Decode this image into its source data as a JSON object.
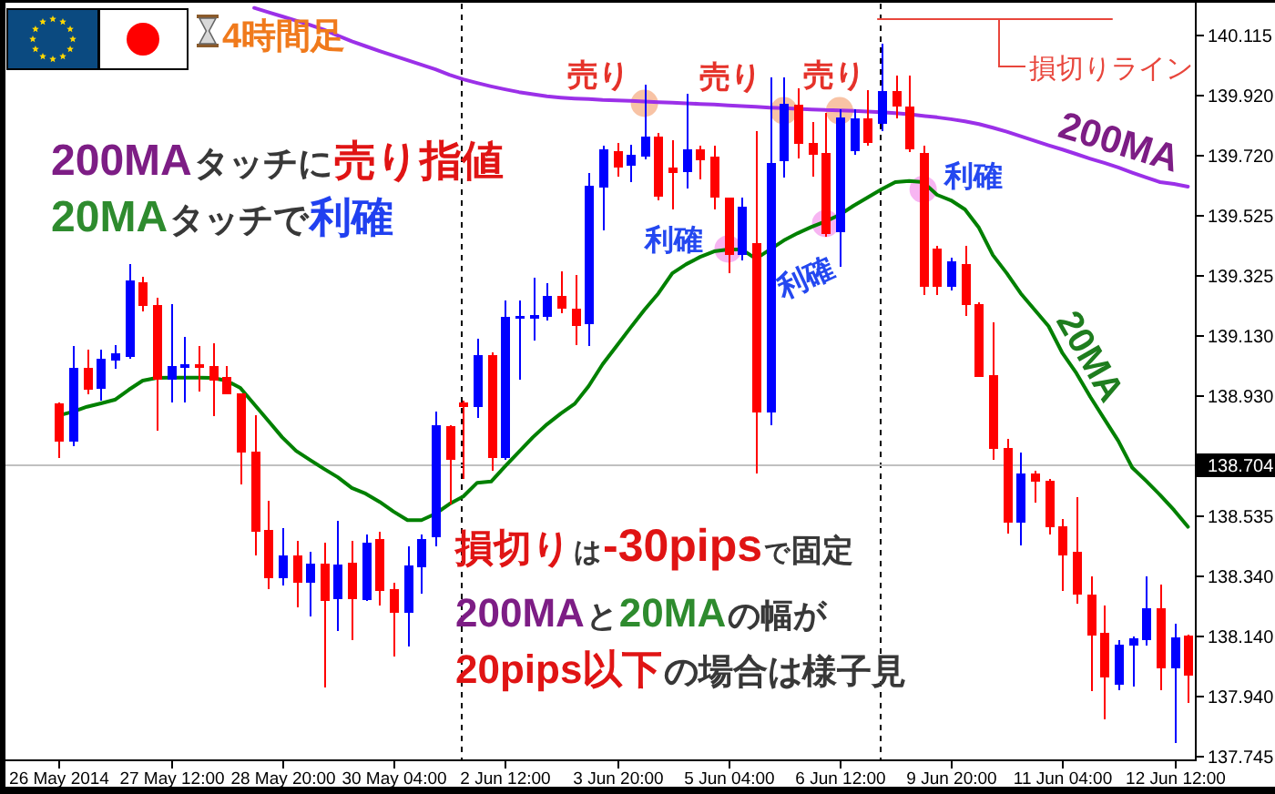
{
  "chart_data": {
    "type": "candlestick",
    "title": "4時間足",
    "categories": [
      "26 May 2014",
      null,
      null,
      null,
      null,
      null,
      null,
      null,
      "27 May 12:00",
      null,
      null,
      null,
      null,
      null,
      null,
      null,
      "28 May 20:00",
      null,
      null,
      null,
      null,
      null,
      null,
      null,
      "30 May 04:00",
      null,
      null,
      null,
      null,
      null,
      null,
      null,
      "2 Jun 12:00",
      null,
      null,
      null,
      null,
      null,
      null,
      null,
      "3 Jun 20:00",
      null,
      null,
      null,
      null,
      null,
      null,
      null,
      "5 Jun 04:00",
      null,
      null,
      null,
      null,
      null,
      null,
      null,
      "6 Jun 12:00",
      null,
      null,
      null,
      null,
      null,
      null,
      null,
      "9 Jun 20:00",
      null,
      null,
      null,
      null,
      null,
      null,
      null,
      "11 Jun 04:00",
      null,
      null,
      null,
      null,
      null,
      null,
      null,
      "12 Jun 12:00",
      null
    ],
    "ohlc": [
      [
        138.903,
        138.906,
        138.723,
        138.777
      ],
      [
        138.777,
        139.093,
        138.763,
        139.021
      ],
      [
        139.021,
        139.081,
        138.933,
        138.949
      ],
      [
        138.951,
        139.081,
        138.913,
        139.051
      ],
      [
        139.046,
        139.097,
        139.017,
        139.069
      ],
      [
        139.057,
        139.362,
        139.052,
        139.308
      ],
      [
        139.302,
        139.32,
        139.206,
        139.226
      ],
      [
        139.229,
        139.253,
        138.813,
        138.983
      ],
      [
        138.983,
        139.232,
        138.907,
        139.027
      ],
      [
        139.021,
        139.122,
        138.907,
        139.033
      ],
      [
        139.033,
        139.093,
        138.943,
        139.021
      ],
      [
        139.027,
        139.103,
        138.863,
        138.979
      ],
      [
        138.991,
        139.027,
        138.933,
        138.933
      ],
      [
        138.937,
        138.937,
        138.637,
        138.741
      ],
      [
        138.745,
        138.865,
        138.404,
        138.483
      ],
      [
        138.488,
        138.583,
        138.294,
        138.33
      ],
      [
        138.33,
        138.494,
        138.304,
        138.404
      ],
      [
        138.404,
        138.453,
        138.234,
        138.314
      ],
      [
        138.314,
        138.417,
        138.204,
        138.378
      ],
      [
        138.378,
        138.446,
        137.971,
        138.254
      ],
      [
        138.26,
        138.519,
        138.154,
        138.374
      ],
      [
        138.38,
        138.453,
        138.124,
        138.26
      ],
      [
        138.258,
        138.474,
        138.254,
        138.447
      ],
      [
        138.459,
        138.483,
        138.238,
        138.288
      ],
      [
        138.294,
        138.314,
        138.07,
        138.214
      ],
      [
        138.214,
        138.434,
        138.104,
        138.37
      ],
      [
        138.364,
        138.474,
        138.278,
        138.459
      ],
      [
        138.464,
        138.877,
        138.434,
        138.833
      ],
      [
        138.829,
        138.833,
        138.573,
        138.717
      ],
      [
        138.907,
        138.913,
        138.657,
        138.893
      ],
      [
        138.893,
        139.117,
        138.857,
        139.063
      ],
      [
        139.063,
        139.073,
        138.683,
        138.723
      ],
      [
        138.723,
        139.242,
        138.717,
        139.188
      ],
      [
        139.182,
        139.242,
        138.983,
        139.193
      ],
      [
        139.184,
        139.318,
        139.112,
        139.196
      ],
      [
        139.188,
        139.298,
        139.178,
        139.258
      ],
      [
        139.258,
        139.338,
        139.202,
        139.217
      ],
      [
        139.217,
        139.326,
        139.097,
        139.158
      ],
      [
        139.166,
        139.662,
        139.093,
        139.621
      ],
      [
        139.615,
        139.751,
        139.472,
        139.741
      ],
      [
        139.735,
        139.762,
        139.651,
        139.681
      ],
      [
        139.687,
        139.756,
        139.632,
        139.721
      ],
      [
        139.715,
        139.951,
        139.708,
        139.781
      ],
      [
        139.781,
        139.793,
        139.572,
        139.583
      ],
      [
        139.681,
        139.771,
        139.542,
        139.662
      ],
      [
        139.666,
        139.921,
        139.612,
        139.741
      ],
      [
        139.741,
        139.751,
        139.642,
        139.705
      ],
      [
        139.715,
        139.751,
        139.542,
        139.582
      ],
      [
        139.582,
        139.582,
        139.332,
        139.392
      ],
      [
        139.392,
        139.582,
        139.374,
        139.552
      ],
      [
        139.432,
        139.801,
        138.673,
        138.873
      ],
      [
        138.873,
        139.977,
        138.833,
        139.696
      ],
      [
        139.702,
        139.977,
        139.648,
        139.891
      ],
      [
        139.887,
        139.941,
        139.711,
        139.757
      ],
      [
        139.762,
        139.831,
        139.651,
        139.721
      ],
      [
        139.727,
        139.861,
        139.452,
        139.462
      ],
      [
        139.468,
        139.871,
        139.352,
        139.845
      ],
      [
        139.735,
        139.871,
        139.721,
        139.841
      ],
      [
        139.841,
        139.935,
        139.751,
        139.762
      ],
      [
        139.825,
        140.087,
        139.801,
        139.931
      ],
      [
        139.931,
        139.981,
        139.841,
        139.881
      ],
      [
        139.881,
        139.981,
        139.732,
        139.741
      ],
      [
        139.727,
        139.751,
        139.262,
        139.288
      ],
      [
        139.412,
        139.422,
        139.262,
        139.288
      ],
      [
        139.288,
        139.382,
        139.276,
        139.372
      ],
      [
        139.362,
        139.422,
        139.193,
        139.228
      ],
      [
        139.232,
        139.236,
        138.992,
        138.992
      ],
      [
        138.997,
        139.172,
        138.717,
        138.753
      ],
      [
        138.757,
        138.787,
        138.477,
        138.513
      ],
      [
        138.513,
        138.743,
        138.438,
        138.673
      ],
      [
        138.673,
        138.683,
        138.577,
        138.647
      ],
      [
        138.649,
        138.657,
        138.474,
        138.498
      ],
      [
        138.5,
        138.524,
        138.288,
        138.404
      ],
      [
        138.417,
        138.597,
        138.244,
        138.274
      ],
      [
        138.274,
        138.334,
        137.959,
        138.14
      ],
      [
        138.148,
        138.24,
        137.865,
        138.004
      ],
      [
        137.98,
        138.124,
        137.96,
        138.11
      ],
      [
        138.108,
        138.138,
        137.974,
        138.13
      ],
      [
        138.124,
        138.334,
        138.108,
        138.23
      ],
      [
        138.23,
        138.308,
        137.96,
        138.034
      ],
      [
        138.034,
        138.178,
        137.788,
        138.134
      ],
      [
        138.14,
        138.144,
        137.918,
        138.01
      ]
    ],
    "colors": [
      "#ff0000",
      "#0000ff",
      "#ff0000",
      "#0000ff",
      "#0000ff",
      "#0000ff",
      "#ff0000",
      "#ff0000",
      "#0000ff",
      "#0000ff",
      "#ff0000",
      "#ff0000",
      "#ff0000",
      "#ff0000",
      "#ff0000",
      "#ff0000",
      "#0000ff",
      "#ff0000",
      "#0000ff",
      "#ff0000",
      "#0000ff",
      "#ff0000",
      "#0000ff",
      "#ff0000",
      "#ff0000",
      "#0000ff",
      "#0000ff",
      "#0000ff",
      "#ff0000",
      "#ff0000",
      "#0000ff",
      "#ff0000",
      "#0000ff",
      "#0000ff",
      "#0000ff",
      "#0000ff",
      "#ff0000",
      "#ff0000",
      "#0000ff",
      "#0000ff",
      "#ff0000",
      "#0000ff",
      "#0000ff",
      "#ff0000",
      "#ff0000",
      "#0000ff",
      "#ff0000",
      "#ff0000",
      "#ff0000",
      "#0000ff",
      "#ff0000",
      "#0000ff",
      "#0000ff",
      "#ff0000",
      "#ff0000",
      "#ff0000",
      "#0000ff",
      "#0000ff",
      "#ff0000",
      "#0000ff",
      "#ff0000",
      "#ff0000",
      "#ff0000",
      "#ff0000",
      "#0000ff",
      "#ff0000",
      "#ff0000",
      "#ff0000",
      "#ff0000",
      "#0000ff",
      "#ff0000",
      "#ff0000",
      "#ff0000",
      "#ff0000",
      "#ff0000",
      "#ff0000",
      "#0000ff",
      "#0000ff",
      "#0000ff",
      "#ff0000",
      "#0000ff",
      "#ff0000"
    ],
    "series": [
      {
        "name": "200MA",
        "type": "line",
        "color": "#9b30e8",
        "values": [
          null,
          null,
          null,
          null,
          null,
          null,
          null,
          null,
          null,
          null,
          null,
          null,
          null,
          null,
          140.205,
          140.191,
          140.177,
          140.163,
          140.149,
          140.133,
          140.114,
          140.095,
          140.079,
          140.063,
          140.048,
          140.033,
          140.018,
          140.003,
          139.985,
          139.97,
          139.958,
          139.947,
          139.937,
          139.928,
          139.921,
          139.914,
          139.91,
          139.907,
          139.905,
          139.902,
          139.901,
          139.899,
          139.897,
          139.895,
          139.893,
          139.891,
          139.889,
          139.887,
          139.884,
          139.882,
          139.88,
          139.877,
          139.875,
          139.873,
          139.871,
          139.869,
          139.868,
          139.866,
          139.864,
          139.862,
          139.859,
          139.855,
          139.85,
          139.845,
          139.839,
          139.832,
          139.823,
          139.811,
          139.798,
          139.783,
          139.768,
          139.753,
          139.739,
          139.724,
          139.709,
          139.695,
          139.68,
          139.663,
          139.647,
          139.632,
          139.626,
          139.617
        ]
      },
      {
        "name": "20MA",
        "type": "line",
        "color": "#008000",
        "values": [
          138.865,
          138.877,
          138.893,
          138.904,
          138.916,
          138.949,
          138.979,
          138.988,
          138.989,
          138.989,
          138.989,
          138.988,
          138.979,
          138.955,
          138.901,
          138.847,
          138.793,
          138.748,
          138.718,
          138.689,
          138.661,
          138.626,
          138.607,
          138.58,
          138.548,
          138.52,
          138.52,
          138.541,
          138.573,
          138.598,
          138.643,
          138.647,
          138.697,
          138.745,
          138.793,
          138.835,
          138.871,
          138.903,
          138.961,
          139.033,
          139.093,
          139.153,
          139.212,
          139.266,
          139.332,
          139.362,
          139.386,
          139.404,
          139.41,
          139.41,
          139.38,
          139.41,
          139.44,
          139.464,
          139.485,
          139.503,
          139.524,
          139.554,
          139.581,
          139.608,
          139.632,
          139.636,
          139.632,
          139.59,
          139.572,
          139.542,
          139.482,
          139.392,
          139.332,
          139.266,
          139.212,
          139.158,
          139.069,
          139.003,
          138.925,
          138.853,
          138.781,
          138.693,
          138.649,
          138.603,
          138.553,
          138.498
        ]
      },
      {
        "type": "scatter",
        "marker": "circle",
        "color": "#f6b48e",
        "values": [
          null,
          null,
          null,
          null,
          null,
          null,
          null,
          null,
          null,
          null,
          null,
          null,
          null,
          null,
          null,
          null,
          null,
          null,
          null,
          null,
          null,
          null,
          null,
          null,
          null,
          null,
          null,
          null,
          null,
          null,
          null,
          null,
          null,
          null,
          null,
          null,
          null,
          null,
          null,
          null,
          null,
          null,
          139.891,
          null,
          null,
          null,
          null,
          null,
          null,
          null,
          null,
          null,
          139.867,
          null,
          null,
          null,
          139.867,
          null,
          null,
          null,
          null,
          null,
          null,
          null,
          null,
          null,
          null,
          null,
          null,
          null,
          null,
          null,
          null,
          null,
          null,
          null,
          null,
          null,
          null,
          null,
          null,
          null
        ]
      },
      {
        "type": "scatter",
        "marker": "circle",
        "color": "#f5a3ef",
        "values": [
          null,
          null,
          null,
          null,
          null,
          null,
          null,
          null,
          null,
          null,
          null,
          null,
          null,
          null,
          null,
          null,
          null,
          null,
          null,
          null,
          null,
          null,
          null,
          null,
          null,
          null,
          null,
          null,
          null,
          null,
          null,
          null,
          null,
          null,
          null,
          null,
          null,
          null,
          null,
          null,
          null,
          null,
          null,
          null,
          null,
          null,
          null,
          null,
          139.412,
          null,
          null,
          null,
          null,
          null,
          null,
          139.496,
          null,
          null,
          null,
          null,
          null,
          null,
          139.608,
          null,
          null,
          null,
          null,
          null,
          null,
          null,
          null,
          null,
          null,
          null,
          null,
          null,
          null,
          null,
          null,
          null,
          null,
          null
        ]
      }
    ],
    "ylim": [
      137.733,
      140.219
    ],
    "yticks": [
      140.115,
      {
        "value": 139.92,
        "label": "139.920"
      },
      {
        "value": 139.72,
        "label": "139.720"
      },
      139.525,
      139.325,
      {
        "value": 139.13,
        "label": "139.130"
      },
      {
        "value": 138.93,
        "label": "138.930"
      },
      138.535,
      {
        "value": 138.34,
        "label": "138.340"
      },
      {
        "value": 138.14,
        "label": "138.140"
      },
      {
        "value": 137.94,
        "label": "137.940"
      },
      137.745
    ],
    "ref_lines": [
      {
        "axis": "y",
        "value": 138.704,
        "label": "138.704",
        "color": "#c0c0c0"
      },
      {
        "axis": "y",
        "value": 140.171,
        "label": "損切りライン",
        "color": "#e8463c"
      }
    ],
    "annotations": [
      "売り",
      "売り",
      "売り",
      "利確",
      "利確",
      "利確",
      "200MA",
      "タッチに",
      "売り指値",
      "20MA",
      "タッチで",
      "利確",
      "損切り",
      "は",
      "-30pips",
      "で",
      "固定",
      "200MA",
      "と",
      "20MA",
      "の幅が",
      "20pips以下",
      "の場合は様子見"
    ]
  }
}
